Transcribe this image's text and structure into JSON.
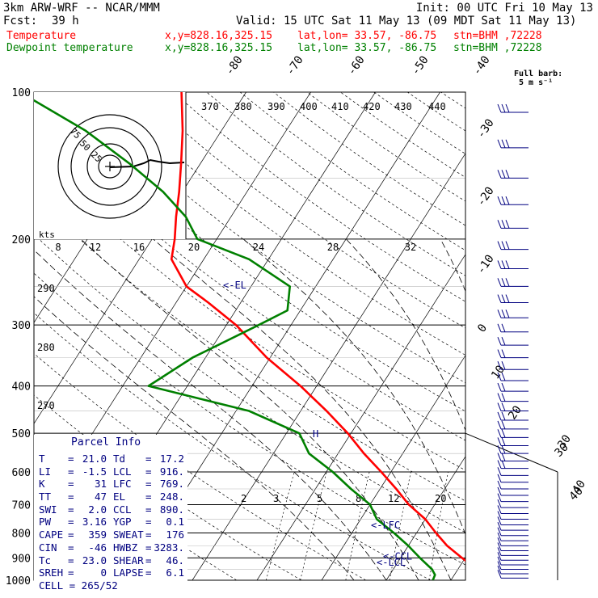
{
  "header": {
    "model": "3km ARW-WRF -- NCAR/MMM",
    "init": "Init: 00 UTC Fri 10 May 13",
    "fcst_label": "Fcst:",
    "fcst_value": "39 h",
    "valid": "Valid: 15 UTC Sat 11 May 13 (09 MDT Sat 11 May 13)",
    "temp_label": "Temperature",
    "dew_label": "Dewpoint temperature",
    "xy": "x,y=828.16,325.15",
    "latlon": "lat,lon= 33.57, -86.75",
    "stn": "stn=BHM ,72228",
    "barb_note_1": "Full barb:",
    "barb_note_2": "5 m s⁻¹"
  },
  "colors": {
    "temperature": "#ff0000",
    "dewpoint": "#008000",
    "axes": "#000000",
    "labels": "#000080",
    "hodo_trace": "#000000"
  },
  "chart_data": {
    "type": "line",
    "title": "",
    "ylabel": "",
    "y_scale": "log-pressure",
    "ylim": [
      1000,
      100
    ],
    "pressure_ticks": [
      100,
      200,
      300,
      400,
      500,
      600,
      700,
      800,
      900,
      1000
    ],
    "skewed_isotherm_labels": [
      "-80",
      "-70",
      "-60",
      "-50",
      "-40",
      "-30",
      "-20",
      "-10",
      "0",
      "10",
      "20",
      "30",
      "40"
    ],
    "theta_labels": [
      "370",
      "380",
      "390",
      "400",
      "410",
      "420",
      "430",
      "440",
      "290",
      "280",
      "270"
    ],
    "mixing_ratio_labels": [
      "2",
      "3",
      "5",
      "8",
      "12",
      "20"
    ],
    "series": [
      {
        "name": "Temperature",
        "color": "#ff0000",
        "pressure": [
          1000,
          975,
          950,
          900,
          850,
          800,
          750,
          700,
          650,
          600,
          550,
          500,
          450,
          400,
          350,
          300,
          270,
          250,
          220,
          200,
          180,
          160,
          140,
          120,
          100
        ],
        "temperature": [
          25.5,
          24.5,
          23.0,
          19.5,
          16.0,
          13.0,
          10.0,
          6.0,
          2.5,
          -1.5,
          -6.0,
          -10.5,
          -16.0,
          -22.5,
          -30.5,
          -38.5,
          -45.0,
          -50.0,
          -55.0,
          -56.5,
          -58.5,
          -60.5,
          -63.0,
          -66.0,
          -70.0
        ]
      },
      {
        "name": "Dewpoint temperature",
        "color": "#008000",
        "pressure": [
          1000,
          975,
          950,
          900,
          850,
          800,
          750,
          700,
          650,
          600,
          550,
          500,
          450,
          400,
          350,
          300,
          280,
          250,
          220,
          200,
          180,
          160,
          140,
          120,
          100
        ],
        "temperature": [
          17.2,
          17.0,
          16.0,
          13.0,
          10.0,
          6.5,
          2.5,
          0.0,
          -4.5,
          -9.0,
          -14.5,
          -18.0,
          -28.0,
          -46.0,
          -42.0,
          -35.0,
          -32.0,
          -34.0,
          -43.0,
          -53.0,
          -57.0,
          -63.0,
          -71.0,
          -81.0,
          -95.0
        ]
      }
    ],
    "level_markers": [
      {
        "label": "<-EL",
        "pressure": 248
      },
      {
        "label": "H",
        "pressure": 500
      },
      {
        "label": "<-LFC",
        "pressure": 769
      },
      {
        "label": "<-CCL",
        "pressure": 890
      },
      {
        "label": "<-LCL",
        "pressure": 916
      }
    ],
    "hodograph": {
      "rings": [
        "25",
        "50",
        "75"
      ],
      "speed_axis_label": "kts",
      "speed_ticks": [
        "8",
        "12",
        "16",
        "20",
        "24",
        "28",
        "32"
      ]
    },
    "wind_barbs_secondary_axis": [
      "30",
      "40"
    ]
  },
  "parcel_info": {
    "title": "Parcel Info",
    "rows": [
      {
        "l1": "T",
        "v1": "21.0",
        "l2": "Td",
        "v2": "17.2"
      },
      {
        "l1": "LI",
        "v1": "-1.5",
        "l2": "LCL",
        "v2": "916."
      },
      {
        "l1": "K",
        "v1": "31",
        "l2": "LFC",
        "v2": "769."
      },
      {
        "l1": "TT",
        "v1": "47",
        "l2": "EL",
        "v2": "248."
      },
      {
        "l1": "SWI",
        "v1": "2.0",
        "l2": "CCL",
        "v2": "890."
      },
      {
        "l1": "PW",
        "v1": "3.16",
        "l2": "YGP",
        "v2": "0.1"
      },
      {
        "l1": "CAPE",
        "v1": "359",
        "l2": "SWEAT",
        "v2": "176"
      },
      {
        "l1": "CIN",
        "v1": "-46",
        "l2": "HWBZ",
        "v2": "3283."
      },
      {
        "l1": "Tc",
        "v1": "23.0",
        "l2": "SHEAR",
        "v2": "46."
      },
      {
        "l1": "SREH",
        "v1": "0",
        "l2": "LAPSE",
        "v2": "6.1"
      }
    ],
    "cell": "CELL = 265/52"
  }
}
